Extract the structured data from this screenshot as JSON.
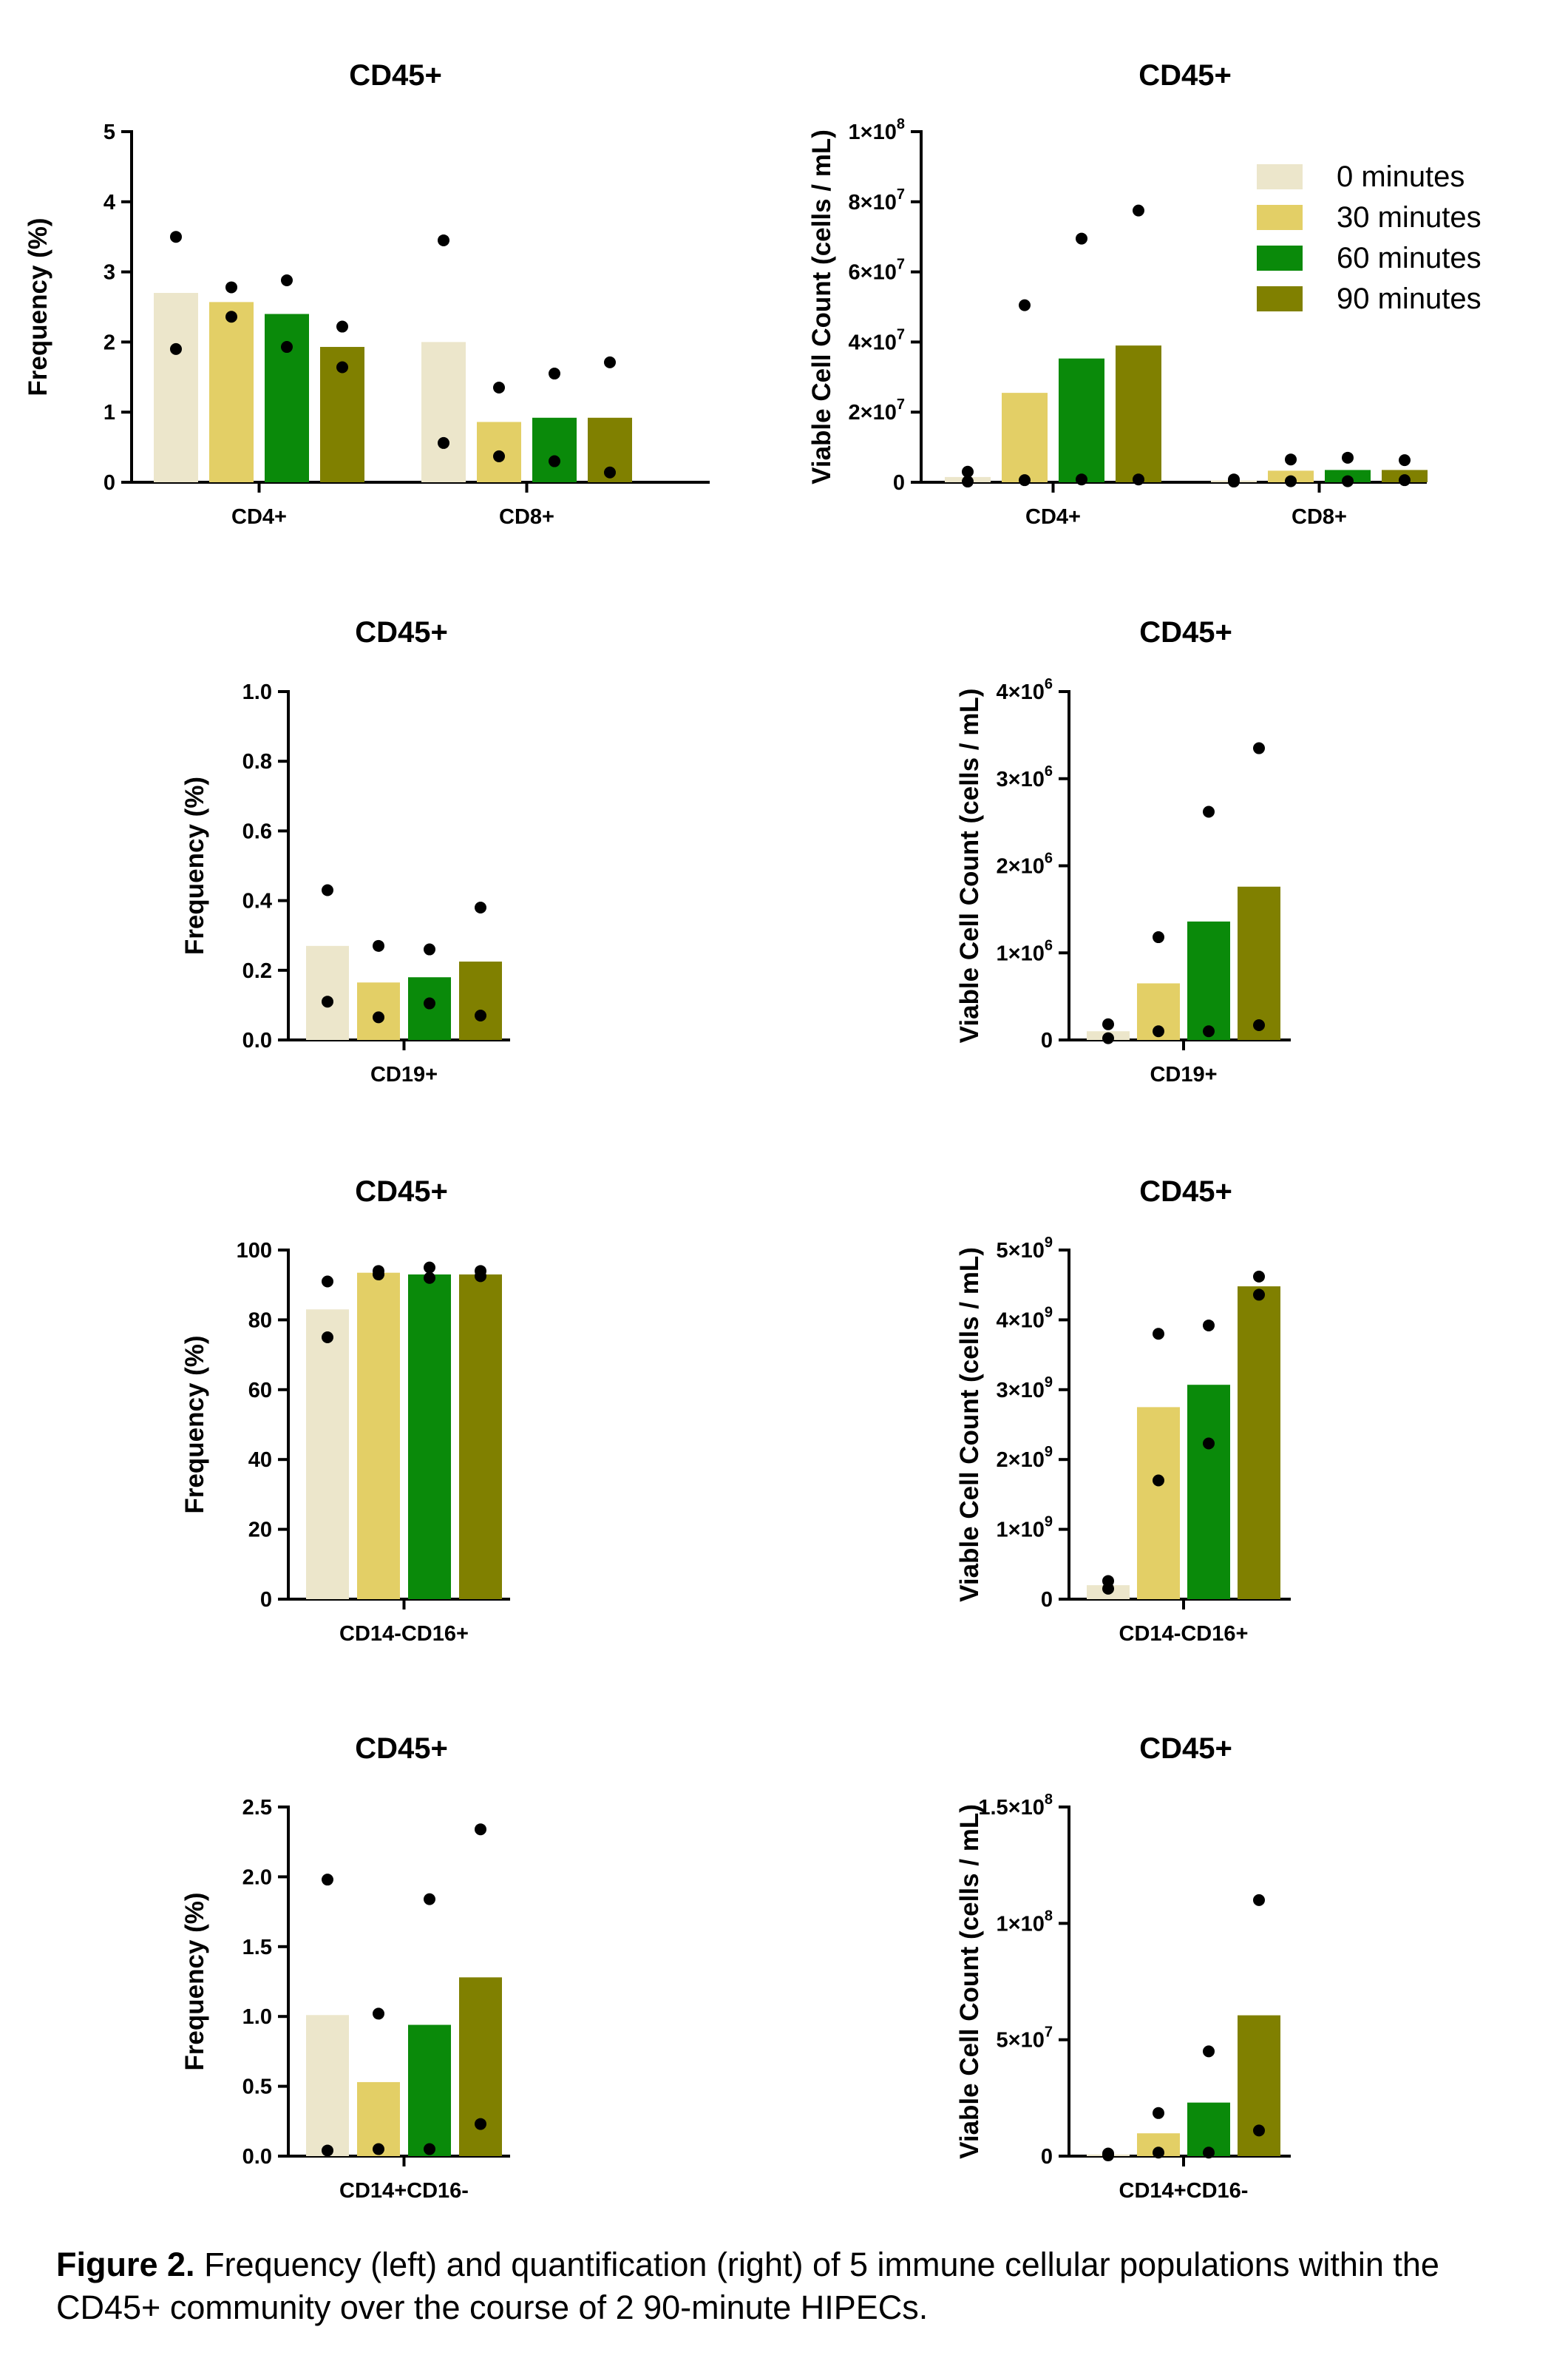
{
  "colors": {
    "0 minutes": "#ece6cb",
    "30 minutes": "#e3cf66",
    "60 minutes": "#0a8a0a",
    "90 minutes": "#808000",
    "points": "#000000"
  },
  "legend": [
    "0 minutes",
    "30 minutes",
    "60 minutes",
    "90 minutes"
  ],
  "caption": {
    "label": "Figure 2.",
    "text": "Frequency (left) and quantification (right) of 5 immune cellular populations within the CD45+ community over the course of 2 90-minute HIPECs."
  },
  "chart_data": [
    {
      "id": "freq-cd4-cd8",
      "type": "bar",
      "title": "CD45+",
      "ylabel": "Frequency  (%)",
      "ylim": [
        0,
        5
      ],
      "yticks": [
        {
          "v": 0,
          "t": "0"
        },
        {
          "v": 1,
          "t": "1"
        },
        {
          "v": 2,
          "t": "2"
        },
        {
          "v": 3,
          "t": "3"
        },
        {
          "v": 4,
          "t": "4"
        },
        {
          "v": 5,
          "t": "5"
        }
      ],
      "categories": [
        "CD4+",
        "CD8+"
      ],
      "series": [
        {
          "name": "0 minutes",
          "values": [
            2.7,
            2.0
          ],
          "points": [
            [
              3.5,
              1.9
            ],
            [
              3.45,
              0.56
            ]
          ]
        },
        {
          "name": "30 minutes",
          "values": [
            2.57,
            0.86
          ],
          "points": [
            [
              2.78,
              2.36
            ],
            [
              1.35,
              0.37
            ]
          ]
        },
        {
          "name": "60 minutes",
          "values": [
            2.4,
            0.92
          ],
          "points": [
            [
              2.88,
              1.93
            ],
            [
              1.55,
              0.3
            ]
          ]
        },
        {
          "name": "90 minutes",
          "values": [
            1.93,
            0.92
          ],
          "points": [
            [
              2.22,
              1.64
            ],
            [
              1.71,
              0.14
            ]
          ]
        }
      ]
    },
    {
      "id": "count-cd4-cd8",
      "type": "bar",
      "title": "CD45+",
      "ylabel": "Viable Cell Count (cells / mL)",
      "ylim": [
        0,
        100000000
      ],
      "yticks": [
        {
          "v": 0,
          "t": "0"
        },
        {
          "v": 20000000,
          "t": "2×10",
          "e": "7"
        },
        {
          "v": 40000000,
          "t": "4×10",
          "e": "7"
        },
        {
          "v": 60000000,
          "t": "6×10",
          "e": "7"
        },
        {
          "v": 80000000,
          "t": "8×10",
          "e": "7"
        },
        {
          "v": 100000000,
          "t": "1×10",
          "e": "8"
        }
      ],
      "categories": [
        "CD4+",
        "CD8+"
      ],
      "legend_position": "top-right",
      "series": [
        {
          "name": "0 minutes",
          "values": [
            1500000,
            500000
          ],
          "points": [
            [
              3000000,
              200000
            ],
            [
              200000,
              800000
            ]
          ]
        },
        {
          "name": "30 minutes",
          "values": [
            25500000,
            3300000
          ],
          "points": [
            [
              50500000,
              600000
            ],
            [
              6500000,
              300000
            ]
          ]
        },
        {
          "name": "60 minutes",
          "values": [
            35300000,
            3500000
          ],
          "points": [
            [
              69500000,
              800000
            ],
            [
              7000000,
              300000
            ]
          ]
        },
        {
          "name": "90 minutes",
          "values": [
            39000000,
            3500000
          ],
          "points": [
            [
              77500000,
              800000
            ],
            [
              6300000,
              600000
            ]
          ]
        }
      ]
    },
    {
      "id": "freq-cd19",
      "type": "bar",
      "title": "CD45+",
      "ylabel": "Frequency (%)",
      "ylim": [
        0,
        1.0
      ],
      "yticks": [
        {
          "v": 0,
          "t": "0.0"
        },
        {
          "v": 0.2,
          "t": "0.2"
        },
        {
          "v": 0.4,
          "t": "0.4"
        },
        {
          "v": 0.6,
          "t": "0.6"
        },
        {
          "v": 0.8,
          "t": "0.8"
        },
        {
          "v": 1.0,
          "t": "1.0"
        }
      ],
      "categories": [
        "CD19+"
      ],
      "series": [
        {
          "name": "0 minutes",
          "values": [
            0.27
          ],
          "points": [
            [
              0.43,
              0.11
            ]
          ]
        },
        {
          "name": "30 minutes",
          "values": [
            0.165
          ],
          "points": [
            [
              0.27,
              0.065
            ]
          ]
        },
        {
          "name": "60 minutes",
          "values": [
            0.18
          ],
          "points": [
            [
              0.26,
              0.105
            ]
          ]
        },
        {
          "name": "90 minutes",
          "values": [
            0.225
          ],
          "points": [
            [
              0.38,
              0.07
            ]
          ]
        }
      ]
    },
    {
      "id": "count-cd19",
      "type": "bar",
      "title": "CD45+",
      "ylabel": "Viable Cell Count (cells / mL)",
      "ylim": [
        0,
        4000000
      ],
      "yticks": [
        {
          "v": 0,
          "t": "0"
        },
        {
          "v": 1000000,
          "t": "1×10",
          "e": "6"
        },
        {
          "v": 2000000,
          "t": "2×10",
          "e": "6"
        },
        {
          "v": 3000000,
          "t": "3×10",
          "e": "6"
        },
        {
          "v": 4000000,
          "t": "4×10",
          "e": "6"
        }
      ],
      "categories": [
        "CD19+"
      ],
      "series": [
        {
          "name": "0 minutes",
          "values": [
            100000
          ],
          "points": [
            [
              180000,
              20000
            ]
          ]
        },
        {
          "name": "30 minutes",
          "values": [
            650000
          ],
          "points": [
            [
              1180000,
              100000
            ]
          ]
        },
        {
          "name": "60 minutes",
          "values": [
            1360000
          ],
          "points": [
            [
              2620000,
              100000
            ]
          ]
        },
        {
          "name": "90 minutes",
          "values": [
            1760000
          ],
          "points": [
            [
              3350000,
              170000
            ]
          ]
        }
      ]
    },
    {
      "id": "freq-cd14-cd16p",
      "type": "bar",
      "title": "CD45+",
      "ylabel": "Frequency (%)",
      "ylim": [
        0,
        100
      ],
      "yticks": [
        {
          "v": 0,
          "t": "0"
        },
        {
          "v": 20,
          "t": "20"
        },
        {
          "v": 40,
          "t": "40"
        },
        {
          "v": 60,
          "t": "60"
        },
        {
          "v": 80,
          "t": "80"
        },
        {
          "v": 100,
          "t": "100"
        }
      ],
      "categories": [
        "CD14-CD16+"
      ],
      "series": [
        {
          "name": "0 minutes",
          "values": [
            83
          ],
          "points": [
            [
              91,
              75
            ]
          ]
        },
        {
          "name": "30 minutes",
          "values": [
            93.5
          ],
          "points": [
            [
              93,
              94
            ]
          ]
        },
        {
          "name": "60 minutes",
          "values": [
            93
          ],
          "points": [
            [
              95,
              92
            ]
          ]
        },
        {
          "name": "90 minutes",
          "values": [
            93
          ],
          "points": [
            [
              92.5,
              94
            ]
          ]
        }
      ]
    },
    {
      "id": "count-cd14-cd16p",
      "type": "bar",
      "title": "CD45+",
      "ylabel": "Viable Cell Count (cells / mL)",
      "ylim": [
        0,
        5000000000
      ],
      "yticks": [
        {
          "v": 0,
          "t": "0"
        },
        {
          "v": 1000000000,
          "t": "1×10",
          "e": "9"
        },
        {
          "v": 2000000000,
          "t": "2×10",
          "e": "9"
        },
        {
          "v": 3000000000,
          "t": "3×10",
          "e": "9"
        },
        {
          "v": 4000000000,
          "t": "4×10",
          "e": "9"
        },
        {
          "v": 5000000000,
          "t": "5×10",
          "e": "9"
        }
      ],
      "categories": [
        "CD14-CD16+"
      ],
      "series": [
        {
          "name": "0 minutes",
          "values": [
            200000000
          ],
          "points": [
            [
              150000000,
              260000000
            ]
          ]
        },
        {
          "name": "30 minutes",
          "values": [
            2750000000
          ],
          "points": [
            [
              3800000000,
              1700000000
            ]
          ]
        },
        {
          "name": "60 minutes",
          "values": [
            3070000000
          ],
          "points": [
            [
              3920000000,
              2230000000
            ]
          ]
        },
        {
          "name": "90 minutes",
          "values": [
            4480000000
          ],
          "points": [
            [
              4620000000,
              4360000000
            ]
          ]
        }
      ]
    },
    {
      "id": "freq-cd14p-cd16",
      "type": "bar",
      "title": "CD45+",
      "ylabel": "Frequency (%)",
      "ylim": [
        0,
        2.5
      ],
      "yticks": [
        {
          "v": 0,
          "t": "0.0"
        },
        {
          "v": 0.5,
          "t": "0.5"
        },
        {
          "v": 1.0,
          "t": "1.0"
        },
        {
          "v": 1.5,
          "t": "1.5"
        },
        {
          "v": 2.0,
          "t": "2.0"
        },
        {
          "v": 2.5,
          "t": "2.5"
        }
      ],
      "categories": [
        "CD14+CD16-"
      ],
      "series": [
        {
          "name": "0 minutes",
          "values": [
            1.01
          ],
          "points": [
            [
              1.98,
              0.04
            ]
          ]
        },
        {
          "name": "30 minutes",
          "values": [
            0.53
          ],
          "points": [
            [
              1.02,
              0.05
            ]
          ]
        },
        {
          "name": "60 minutes",
          "values": [
            0.94
          ],
          "points": [
            [
              1.84,
              0.05
            ]
          ]
        },
        {
          "name": "90 minutes",
          "values": [
            1.28
          ],
          "points": [
            [
              2.34,
              0.23
            ]
          ]
        }
      ]
    },
    {
      "id": "count-cd14p-cd16",
      "type": "bar",
      "title": "CD45+",
      "ylabel": "Viable Cell Count (cells / mL)",
      "ylim": [
        0,
        150000000
      ],
      "yticks": [
        {
          "v": 0,
          "t": "0"
        },
        {
          "v": 50000000,
          "t": "5×10",
          "e": "7"
        },
        {
          "v": 100000000,
          "t": "1×10",
          "e": "8"
        },
        {
          "v": 150000000,
          "t": "1.5×10",
          "e": "8"
        }
      ],
      "categories": [
        "CD14+CD16-"
      ],
      "series": [
        {
          "name": "0 minutes",
          "values": [
            700000
          ],
          "points": [
            [
              300000,
              1100000
            ]
          ]
        },
        {
          "name": "30 minutes",
          "values": [
            9800000
          ],
          "points": [
            [
              18500000,
              1500000
            ]
          ]
        },
        {
          "name": "60 minutes",
          "values": [
            23000000
          ],
          "points": [
            [
              45000000,
              1500000
            ]
          ]
        },
        {
          "name": "90 minutes",
          "values": [
            60500000
          ],
          "points": [
            [
              110000000,
              11000000
            ]
          ]
        }
      ]
    }
  ]
}
